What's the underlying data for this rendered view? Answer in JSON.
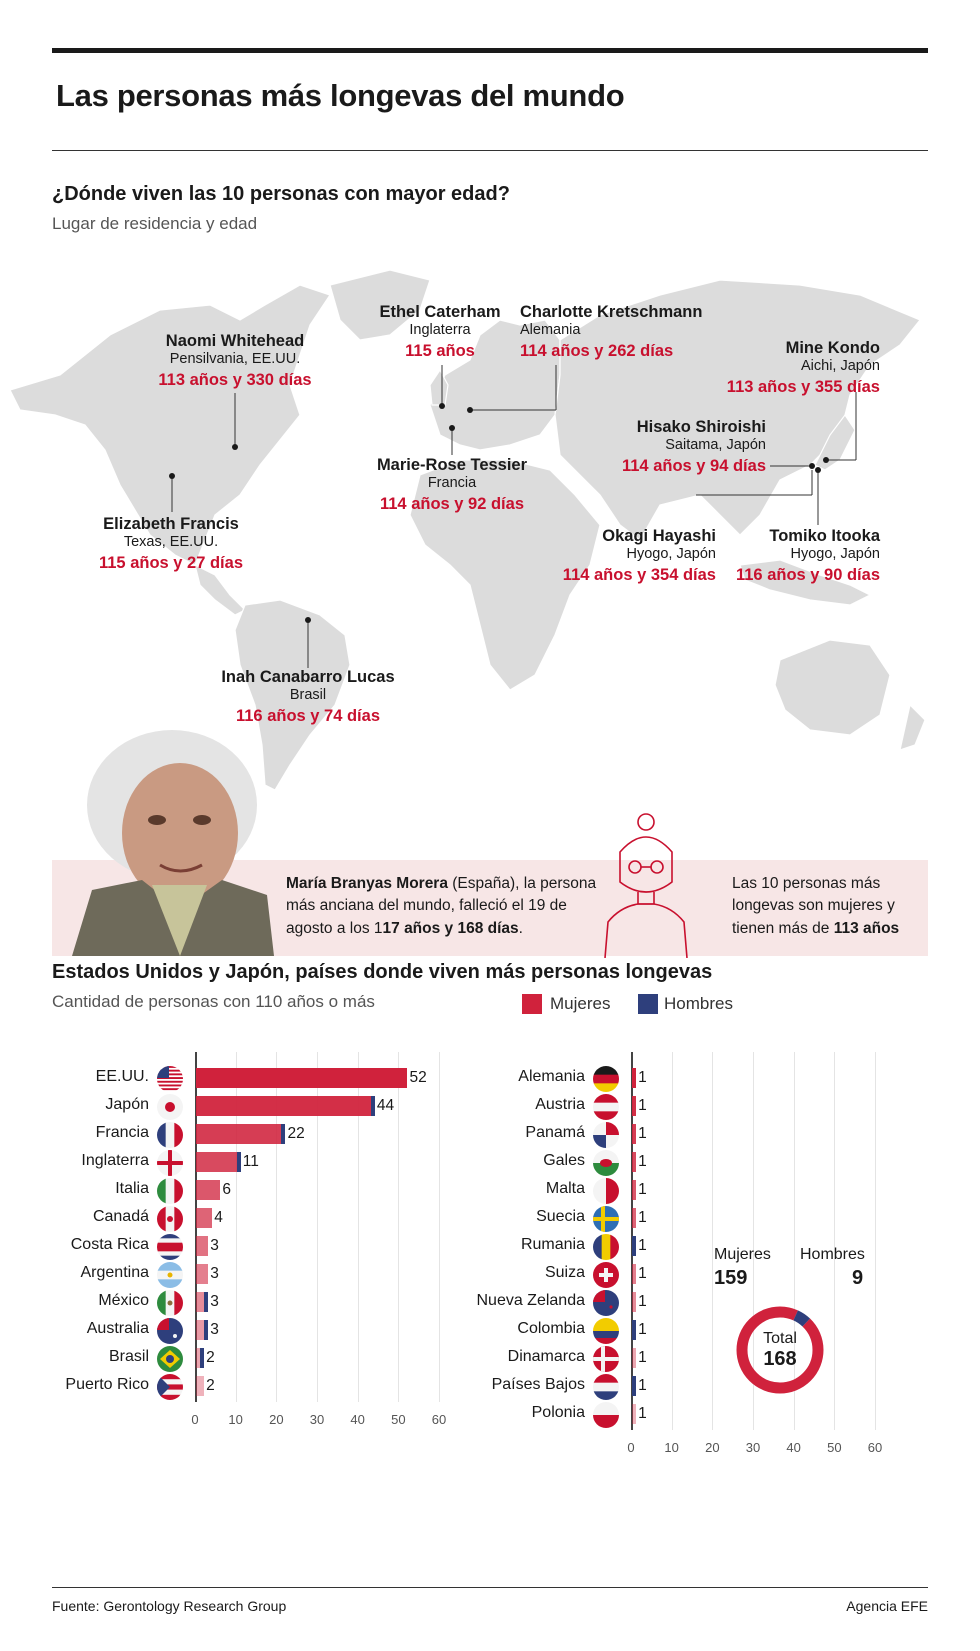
{
  "title": "Las personas más longevas del mundo",
  "map_section": {
    "heading": "¿Dónde viven las 10 personas con mayor edad?",
    "subheading": "Lugar de residencia y edad",
    "people": [
      {
        "name": "Naomi Whitehead",
        "place": "Pensilvania, EE.UU.",
        "age": "113 años y 330 días"
      },
      {
        "name": "Ethel Caterham",
        "place": "Inglaterra",
        "age": "115 años"
      },
      {
        "name": "Charlotte Kretschmann",
        "place": "Alemania",
        "age": "114 años y 262 días"
      },
      {
        "name": "Mine Kondo",
        "place": "Aichi, Japón",
        "age": "113 años y 355 días"
      },
      {
        "name": "Hisako Shiroishi",
        "place": "Saitama, Japón",
        "age": "114 años y 94 días"
      },
      {
        "name": "Marie-Rose Tessier",
        "place": "Francia",
        "age": "114 años y 92 días"
      },
      {
        "name": "Elizabeth Francis",
        "place": "Texas, EE.UU.",
        "age": "115 años y 27 días"
      },
      {
        "name": "Okagi Hayashi",
        "place": "Hyogo, Japón",
        "age": "114 años y 354 días"
      },
      {
        "name": "Tomiko Itooka",
        "place": "Hyogo, Japón",
        "age": "116 años y 90 días"
      },
      {
        "name": "Inah Canabarro Lucas",
        "place": "Brasil",
        "age": "116 años y 74 días"
      }
    ]
  },
  "banner": {
    "left_name": "María Branyas Morera",
    "left_text1": " (España), la persona más anciana del mundo, falleció el 19 de agosto a los 1",
    "left_bold": "17 años y 168 días",
    "left_end": ".",
    "right_text": "Las 10 personas más longevas son mujeres y tienen más de ",
    "right_bold": "113 años"
  },
  "bar_section": {
    "heading": "Estados Unidos y Japón, países donde viven más personas longevas",
    "subheading": "Cantidad de personas con 110 años o más",
    "legend": {
      "women": "Mujeres",
      "men": "Hombres"
    }
  },
  "colors": {
    "women": "#d0223c",
    "men": "#2e3f7c",
    "accent": "#c8102e",
    "banner": "#f7e6e6"
  },
  "chart_data": [
    {
      "type": "bar",
      "orientation": "horizontal",
      "stacked": true,
      "categories": [
        "EE.UU.",
        "Japón",
        "Francia",
        "Inglaterra",
        "Italia",
        "Canadá",
        "Costa Rica",
        "Argentina",
        "México",
        "Australia",
        "Brasil",
        "Puerto Rico"
      ],
      "totals": [
        52,
        44,
        22,
        11,
        6,
        4,
        3,
        3,
        3,
        3,
        2,
        2
      ],
      "series": [
        {
          "name": "Mujeres",
          "values": [
            52,
            43,
            21,
            10,
            6,
            4,
            3,
            3,
            2,
            2,
            1,
            2
          ]
        },
        {
          "name": "Hombres",
          "values": [
            0,
            1,
            1,
            1,
            0,
            0,
            0,
            0,
            1,
            1,
            1,
            0
          ]
        }
      ],
      "xlim": [
        0,
        60
      ],
      "xticks": [
        "0",
        "10",
        "20",
        "30",
        "40",
        "50",
        "60"
      ],
      "flags": [
        "us",
        "jp",
        "fr",
        "en",
        "it",
        "ca",
        "cr",
        "ar",
        "mx",
        "au",
        "br",
        "pr"
      ]
    },
    {
      "type": "bar",
      "orientation": "horizontal",
      "stacked": true,
      "categories": [
        "Alemania",
        "Austria",
        "Panamá",
        "Gales",
        "Malta",
        "Suecia",
        "Rumania",
        "Suiza",
        "Nueva Zelanda",
        "Colombia",
        "Dinamarca",
        "Países Bajos",
        "Polonia"
      ],
      "totals": [
        1,
        1,
        1,
        1,
        1,
        1,
        1,
        1,
        1,
        1,
        1,
        1,
        1
      ],
      "series": [
        {
          "name": "Mujeres",
          "values": [
            1,
            1,
            1,
            1,
            1,
            1,
            0,
            1,
            1,
            0,
            1,
            0,
            1
          ]
        },
        {
          "name": "Hombres",
          "values": [
            0,
            0,
            0,
            0,
            0,
            0,
            1,
            0,
            0,
            1,
            0,
            1,
            0
          ]
        }
      ],
      "xlim": [
        0,
        60
      ],
      "xticks": [
        "0",
        "10",
        "20",
        "30",
        "40",
        "50",
        "60"
      ],
      "flags": [
        "de",
        "at",
        "pa",
        "wa",
        "mt",
        "se",
        "ro",
        "ch",
        "nz",
        "co",
        "dk",
        "nl",
        "pl"
      ]
    },
    {
      "type": "pie",
      "donut": true,
      "labels": [
        "Mujeres",
        "Hombres"
      ],
      "values": [
        159,
        9
      ],
      "center_label": "Total",
      "center_value": "168"
    }
  ],
  "footer": {
    "source": "Fuente: Gerontology Research Group",
    "agency": "Agencia EFE"
  }
}
